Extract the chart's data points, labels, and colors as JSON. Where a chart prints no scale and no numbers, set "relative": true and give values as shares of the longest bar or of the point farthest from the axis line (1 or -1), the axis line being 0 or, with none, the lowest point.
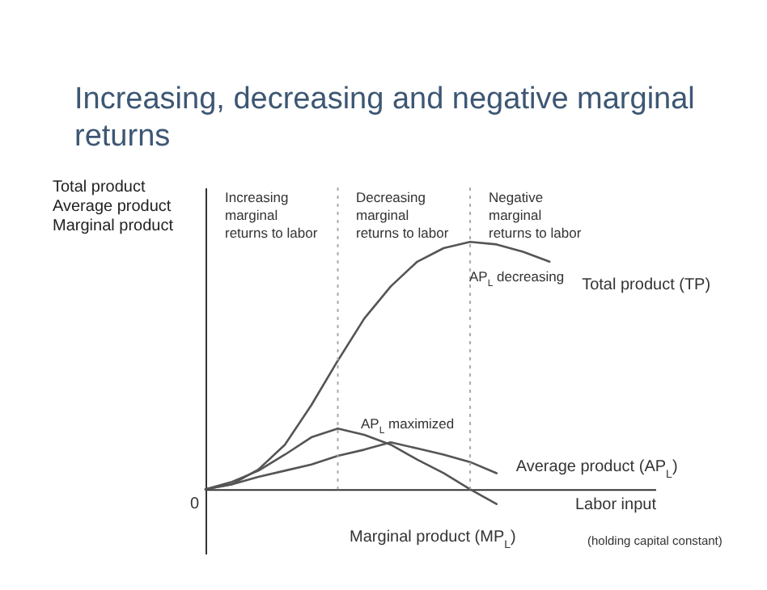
{
  "chart_data": {
    "type": "line",
    "title": "Increasing, decreasing and negative marginal returns",
    "xlabel": "Labor input",
    "ylabel": "Total product\nAverage product\nMarginal product",
    "relative": true,
    "line_style": "solid",
    "categories": [
      null,
      null,
      null,
      null,
      null,
      null,
      null,
      null,
      null,
      null,
      null,
      null,
      null,
      null
    ],
    "series": [
      {
        "name": "Total product (TP)",
        "color": "#555555",
        "values": [
          0,
          0.02,
          0.08,
          0.18,
          0.34,
          0.52,
          0.69,
          0.82,
          0.92,
          0.975,
          1.0,
          0.99,
          0.96,
          0.92
        ]
      },
      {
        "name": "Average product (AP$_{L}$)",
        "color": "#555555",
        "values": [
          0,
          0.02,
          0.05,
          0.075,
          0.1,
          0.135,
          0.16,
          0.19,
          0.165,
          0.14,
          0.11,
          0.065,
          null,
          null
        ]
      },
      {
        "name": "Marginal product (MP$_{L}$)",
        "color": "#555555",
        "values": [
          0,
          0.03,
          0.075,
          0.14,
          0.21,
          0.245,
          0.22,
          0.18,
          0.12,
          0.065,
          0,
          -0.06,
          null,
          null
        ]
      }
    ],
    "annotations": [
      "Increasing\nmarginal\nreturns to labor",
      "Decreasing\nmarginal\nreturns to labor",
      "Negative\nmarginal\nreturns to labor",
      "AP$_{L}$ decreasing",
      "AP$_{L}$ maximized",
      "(holding capital constant)",
      "0"
    ]
  }
}
